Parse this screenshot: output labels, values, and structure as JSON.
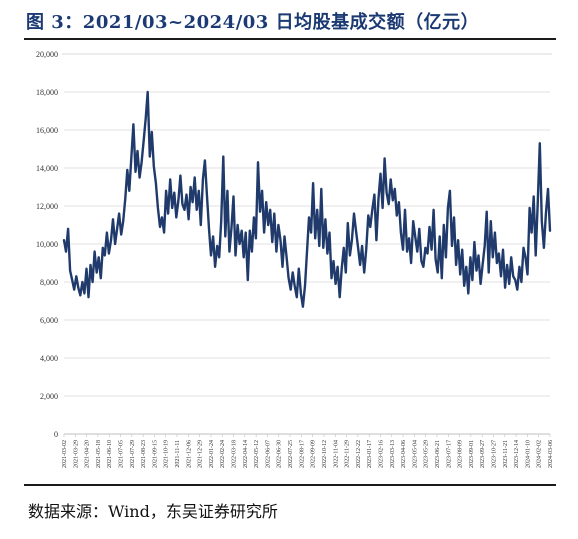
{
  "figure": {
    "title": "图 3：2021/03~2024/03 日均股基成交额（亿元）",
    "source": "数据来源：Wind，东吴证券研究所"
  },
  "chart_data": {
    "type": "line",
    "title": "",
    "xlabel": "",
    "ylabel": "",
    "ylim": [
      0,
      20000
    ],
    "yticks": [
      0,
      2000,
      4000,
      6000,
      8000,
      10000,
      12000,
      14000,
      16000,
      18000,
      20000
    ],
    "ytick_labels": [
      "0",
      "2,000",
      "4,000",
      "6,000",
      "8,000",
      "10,000",
      "12,000",
      "14,000",
      "16,000",
      "18,000",
      "20,000"
    ],
    "grid": true,
    "legend": "none",
    "line_color": "#1f3a6b",
    "xtick_labels": [
      "2021-03-02",
      "2021-03-29",
      "2021-04-20",
      "2021-05-18",
      "2021-06-10",
      "2021-07-05",
      "2021-07-29",
      "2021-08-23",
      "2021-09-15",
      "2021-10-19",
      "2021-11-11",
      "2021-12-06",
      "2021-12-29",
      "2022-01-24",
      "2022-02-24",
      "2022-03-18",
      "2022-04-14",
      "2022-05-12",
      "2022-06-07",
      "2022-06-30",
      "2022-07-25",
      "2022-08-17",
      "2022-09-09",
      "2022-10-12",
      "2022-11-04",
      "2022-11-29",
      "2022-12-22",
      "2023-01-17",
      "2023-02-16",
      "2023-03-13",
      "2023-04-06",
      "2023-05-04",
      "2023-05-29",
      "2023-06-21",
      "2023-07-17",
      "2023-08-09",
      "2023-09-01",
      "2023-09-27",
      "2023-10-27",
      "2023-11-21",
      "2023-12-14",
      "2024-01-10",
      "2024-02-02",
      "2024-03-06"
    ],
    "series": [
      {
        "values": [
          10200,
          9600,
          10800,
          8600,
          8100,
          7600,
          8300,
          7700,
          7300,
          8000,
          7400,
          8700,
          7200,
          8900,
          8000,
          9600,
          8500,
          9300,
          8200,
          9800,
          9400,
          10600,
          9500,
          10200,
          11300,
          10000,
          10800,
          11600,
          10500,
          11200,
          12400,
          13900,
          12800,
          14600,
          16300,
          13800,
          14900,
          13500,
          14300,
          15400,
          16600,
          18000,
          14600,
          15900,
          14100,
          13200,
          11900,
          10900,
          11400,
          10600,
          12800,
          11600,
          13400,
          11900,
          12700,
          11400,
          12300,
          13600,
          12100,
          11800,
          12600,
          11300,
          13000,
          12200,
          13500,
          11800,
          12800,
          11000,
          13400,
          14400,
          12600,
          10800,
          9400,
          10400,
          8800,
          9900,
          9300,
          11200,
          14600,
          10400,
          12800,
          9600,
          10800,
          12500,
          9400,
          11000,
          10000,
          10700,
          9300,
          10600,
          8100,
          10700,
          9600,
          11400,
          10300,
          14300,
          11700,
          12800,
          10600,
          12200,
          11000,
          11800,
          10100,
          11600,
          9600,
          11000,
          10200,
          8800,
          10400,
          9300,
          8200,
          7600,
          8500,
          7800,
          7200,
          8700,
          7400,
          6700,
          7800,
          9600,
          11400,
          10600,
          13200,
          10300,
          11800,
          9900,
          12900,
          9800,
          11300,
          9500,
          10600,
          8200,
          9100,
          7900,
          8800,
          7200,
          8700,
          9800,
          8500,
          11100,
          9400,
          10200,
          11600,
          10700,
          9800,
          8900,
          9900,
          8500,
          9700,
          11500,
          10900,
          11800,
          12600,
          10200,
          12400,
          13700,
          11900,
          14500,
          12700,
          12100,
          13400,
          12300,
          12900,
          11500,
          12200,
          10600,
          9700,
          11800,
          9600,
          10300,
          9000,
          11200,
          10400,
          9600,
          10800,
          9100,
          8800,
          9800,
          9500,
          10900,
          9700,
          11800,
          9200,
          8500,
          10400,
          8200,
          11000,
          9300,
          11900,
          12800,
          9900,
          11400,
          8900,
          10200,
          8400,
          9700,
          7800,
          8800,
          7400,
          9300,
          8100,
          10100,
          8600,
          9400,
          7900,
          8900,
          9900,
          11700,
          8500,
          11200,
          9300,
          10600,
          9000,
          9500,
          8300,
          9700,
          7700,
          8900,
          7900,
          9300,
          8300,
          8100,
          7600,
          8800,
          8000,
          9800,
          9300,
          8400,
          11900,
          10600,
          12500,
          9400,
          12100,
          15300,
          11200,
          9800,
          11600,
          12900,
          10700
        ]
      }
    ]
  }
}
